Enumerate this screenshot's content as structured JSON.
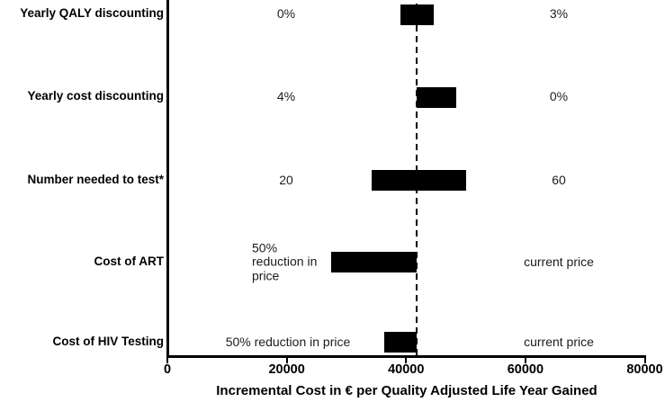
{
  "chart_data": {
    "type": "bar",
    "subtype": "tornado-sensitivity",
    "title": "",
    "xlabel": "Incremental Cost in € per Quality Adjusted Life Year Gained",
    "xlim": [
      0,
      80000
    ],
    "x_ticks": [
      0,
      20000,
      40000,
      60000,
      80000
    ],
    "baseline_value": 41700,
    "baseline_style": "dashed",
    "grid": false,
    "legend": false,
    "bar_color": "#000000",
    "axis_color": "#000000",
    "rows": [
      {
        "category": "Yearly QALY discounting",
        "low": 39100,
        "high": 44600,
        "low_label": "0%",
        "high_label": "3%"
      },
      {
        "category": "Yearly cost discounting",
        "low": 41700,
        "high": 48400,
        "low_label": "4%",
        "high_label": "0%"
      },
      {
        "category": "Number needed to test*",
        "low": 34200,
        "high": 50000,
        "low_label": "20",
        "high_label": "60"
      },
      {
        "category": "Cost of ART",
        "low": 27400,
        "high": 41700,
        "low_label": "50%\nreduction in\nprice",
        "high_label": "current price"
      },
      {
        "category": "Cost of HIV Testing",
        "low": 36400,
        "high": 41700,
        "low_label": "50% reduction in price",
        "high_label": "current price"
      }
    ]
  }
}
